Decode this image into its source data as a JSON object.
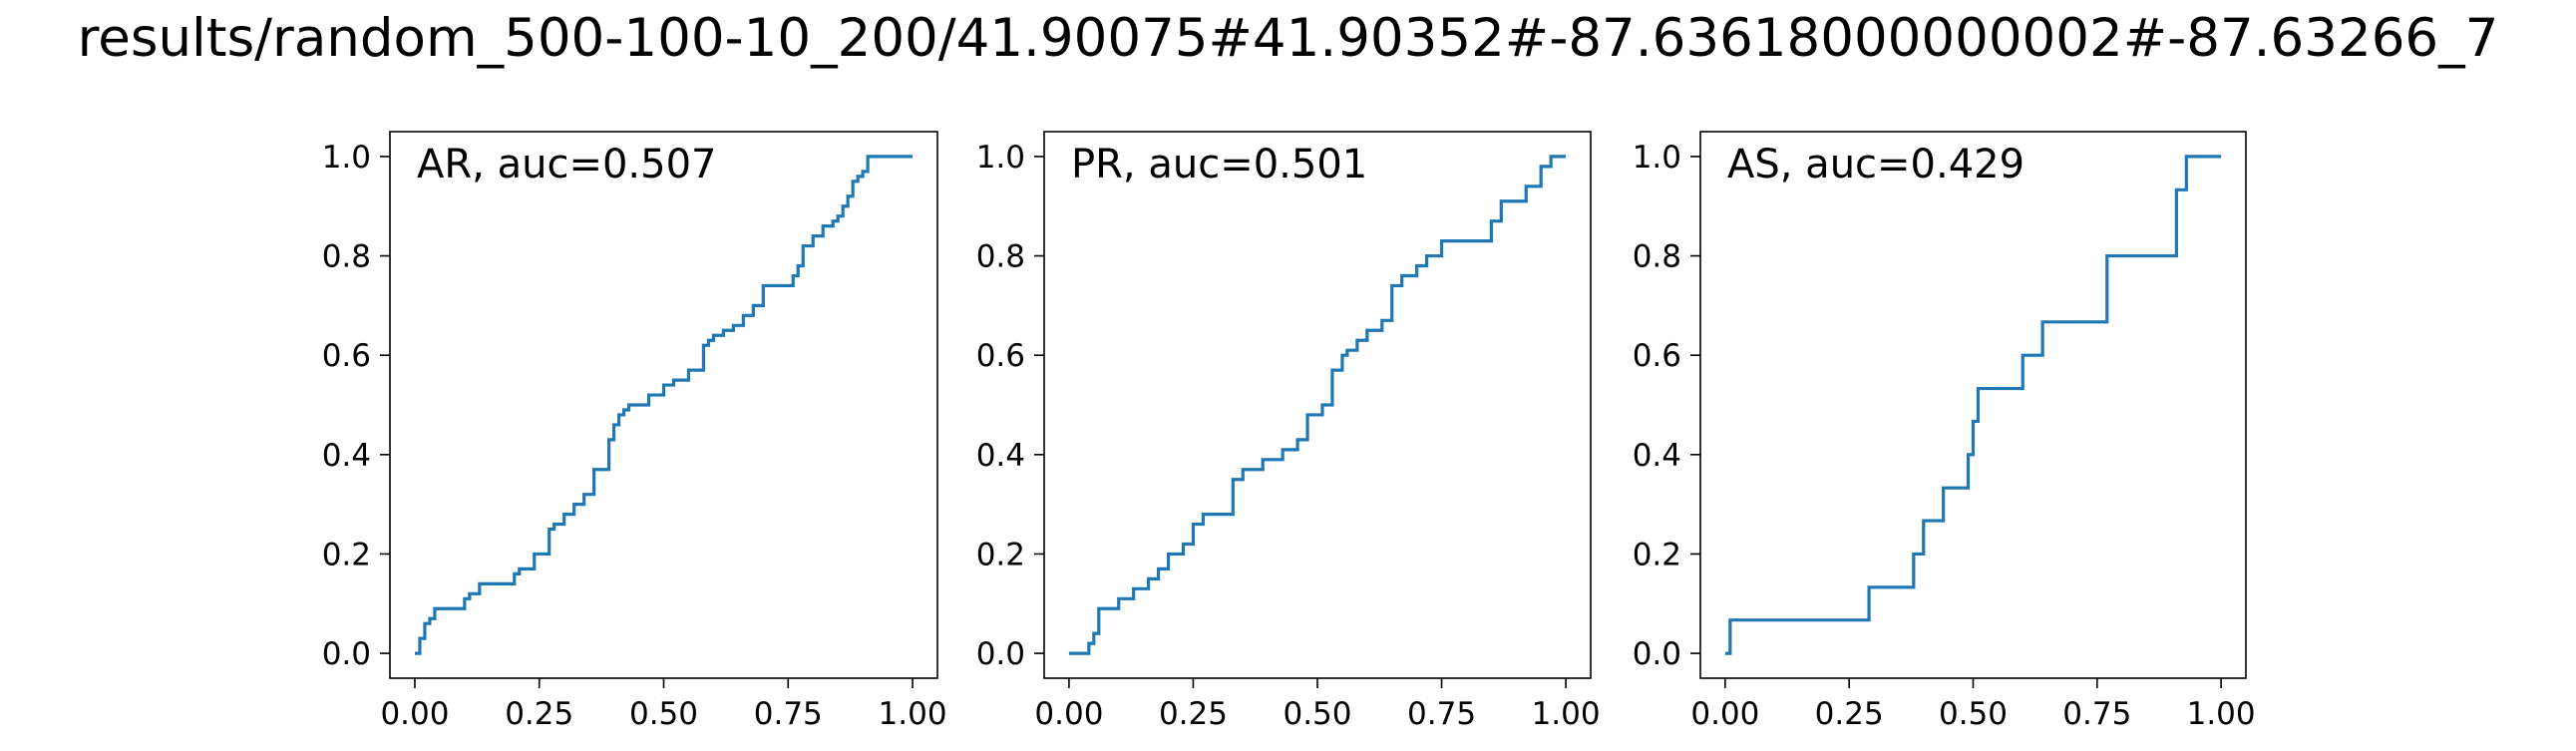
{
  "figure": {
    "title": "results/random_500-100-10_200/41.90075#41.90352#-87.63618000000002#-87.63266_7"
  },
  "colors": {
    "line": "#1f77b4",
    "axes": "#000000",
    "background": "#ffffff"
  },
  "chart_data": [
    {
      "type": "line",
      "title": "AR, auc=0.507",
      "xlabel": "",
      "ylabel": "",
      "xlim": [
        -0.05,
        1.05
      ],
      "ylim": [
        -0.05,
        1.05
      ],
      "grid": false,
      "drawstyle": "steps-post",
      "xticks": [
        0.0,
        0.25,
        0.5,
        0.75,
        1.0
      ],
      "xtick_labels": [
        "0.00",
        "0.25",
        "0.50",
        "0.75",
        "1.00"
      ],
      "yticks": [
        0.0,
        0.2,
        0.4,
        0.6,
        0.8,
        1.0
      ],
      "ytick_labels": [
        "0.0",
        "0.2",
        "0.4",
        "0.6",
        "0.8",
        "1.0"
      ],
      "x": [
        0.0,
        0.01,
        0.02,
        0.03,
        0.04,
        0.1,
        0.11,
        0.13,
        0.2,
        0.21,
        0.24,
        0.27,
        0.28,
        0.3,
        0.32,
        0.34,
        0.36,
        0.39,
        0.4,
        0.41,
        0.42,
        0.43,
        0.47,
        0.5,
        0.52,
        0.55,
        0.58,
        0.59,
        0.6,
        0.62,
        0.64,
        0.66,
        0.68,
        0.7,
        0.76,
        0.77,
        0.78,
        0.8,
        0.82,
        0.84,
        0.85,
        0.86,
        0.87,
        0.88,
        0.89,
        0.9,
        0.91,
        0.96,
        1.0
      ],
      "y": [
        0.0,
        0.03,
        0.06,
        0.07,
        0.09,
        0.11,
        0.12,
        0.14,
        0.16,
        0.17,
        0.2,
        0.25,
        0.26,
        0.28,
        0.3,
        0.32,
        0.37,
        0.43,
        0.46,
        0.48,
        0.49,
        0.5,
        0.52,
        0.54,
        0.55,
        0.57,
        0.62,
        0.63,
        0.64,
        0.65,
        0.66,
        0.68,
        0.7,
        0.74,
        0.76,
        0.78,
        0.82,
        0.84,
        0.86,
        0.87,
        0.88,
        0.9,
        0.92,
        0.95,
        0.96,
        0.97,
        1.0,
        1.0,
        1.0
      ]
    },
    {
      "type": "line",
      "title": "PR, auc=0.501",
      "xlabel": "",
      "ylabel": "",
      "xlim": [
        -0.05,
        1.05
      ],
      "ylim": [
        -0.05,
        1.05
      ],
      "grid": false,
      "drawstyle": "steps-post",
      "xticks": [
        0.0,
        0.25,
        0.5,
        0.75,
        1.0
      ],
      "xtick_labels": [
        "0.00",
        "0.25",
        "0.50",
        "0.75",
        "1.00"
      ],
      "yticks": [
        0.0,
        0.2,
        0.4,
        0.6,
        0.8,
        1.0
      ],
      "ytick_labels": [
        "0.0",
        "0.2",
        "0.4",
        "0.6",
        "0.8",
        "1.0"
      ],
      "x": [
        0.0,
        0.04,
        0.05,
        0.06,
        0.1,
        0.13,
        0.16,
        0.18,
        0.2,
        0.23,
        0.25,
        0.27,
        0.33,
        0.35,
        0.39,
        0.43,
        0.46,
        0.48,
        0.51,
        0.53,
        0.55,
        0.56,
        0.58,
        0.6,
        0.63,
        0.65,
        0.67,
        0.7,
        0.72,
        0.75,
        0.78,
        0.85,
        0.87,
        0.92,
        0.95,
        0.97,
        1.0
      ],
      "y": [
        0.0,
        0.02,
        0.04,
        0.09,
        0.11,
        0.13,
        0.15,
        0.17,
        0.2,
        0.22,
        0.26,
        0.28,
        0.35,
        0.37,
        0.39,
        0.41,
        0.43,
        0.48,
        0.5,
        0.57,
        0.6,
        0.61,
        0.63,
        0.65,
        0.67,
        0.74,
        0.76,
        0.78,
        0.8,
        0.83,
        0.83,
        0.87,
        0.91,
        0.94,
        0.98,
        1.0,
        1.0
      ]
    },
    {
      "type": "line",
      "title": "AS, auc=0.429",
      "xlabel": "",
      "ylabel": "",
      "xlim": [
        -0.05,
        1.05
      ],
      "ylim": [
        -0.05,
        1.05
      ],
      "grid": false,
      "drawstyle": "steps-post",
      "xticks": [
        0.0,
        0.25,
        0.5,
        0.75,
        1.0
      ],
      "xtick_labels": [
        "0.00",
        "0.25",
        "0.50",
        "0.75",
        "1.00"
      ],
      "yticks": [
        0.0,
        0.2,
        0.4,
        0.6,
        0.8,
        1.0
      ],
      "ytick_labels": [
        "0.0",
        "0.2",
        "0.4",
        "0.6",
        "0.8",
        "1.0"
      ],
      "x": [
        0.0,
        0.01,
        0.29,
        0.38,
        0.4,
        0.43,
        0.44,
        0.49,
        0.5,
        0.51,
        0.52,
        0.6,
        0.64,
        0.77,
        0.91,
        0.93,
        1.0
      ],
      "y": [
        0.0,
        0.067,
        0.133,
        0.2,
        0.267,
        0.267,
        0.333,
        0.4,
        0.467,
        0.533,
        0.533,
        0.6,
        0.667,
        0.8,
        0.933,
        1.0,
        1.0
      ]
    }
  ]
}
